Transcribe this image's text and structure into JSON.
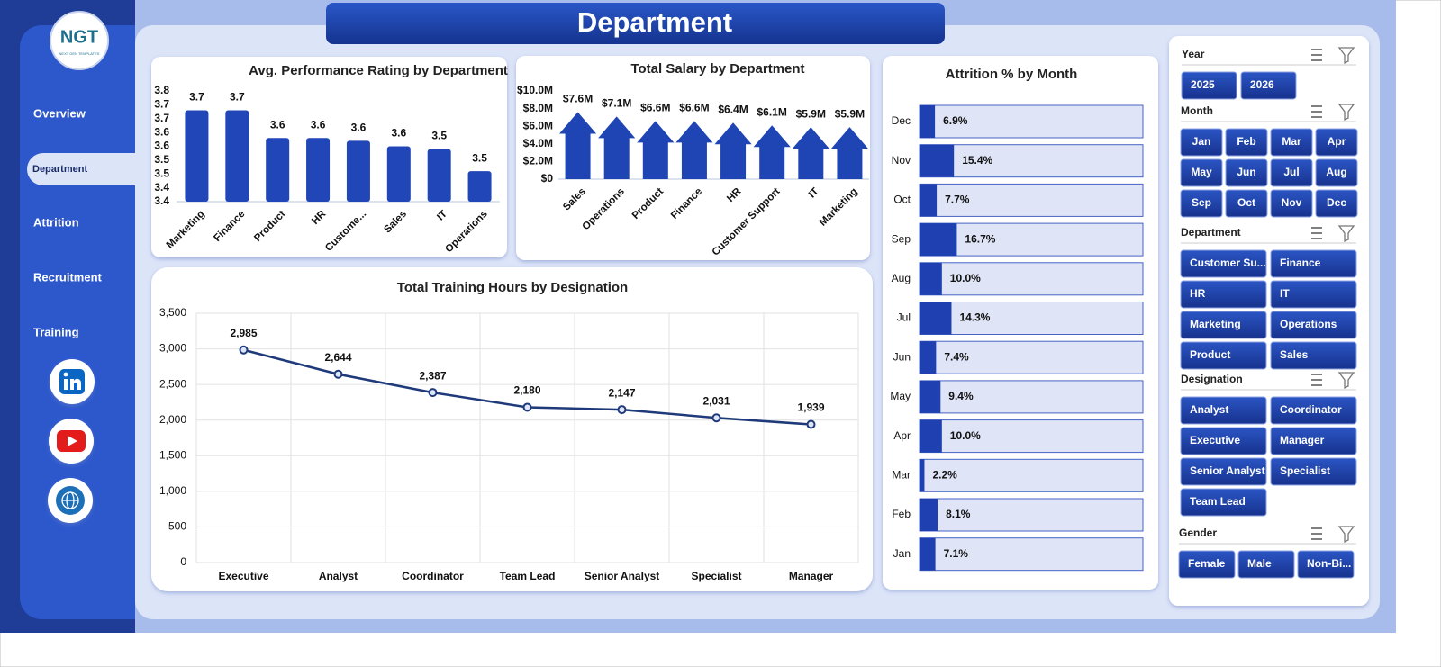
{
  "header": {
    "title": "Department",
    "logo": "NGT",
    "logo_caption": "NEXT GEN TEMPLATES"
  },
  "nav": {
    "items": [
      "Overview",
      "Department",
      "Attrition",
      "Recruitment",
      "Training"
    ],
    "selected": 1
  },
  "chart_data": [
    {
      "type": "bar",
      "title": "Avg. Performance  Rating by Department",
      "categories": [
        "Marketing",
        "Finance",
        "Product",
        "HR",
        "Custome...",
        "Sales",
        "IT",
        "Operations"
      ],
      "values": [
        3.68,
        3.68,
        3.58,
        3.58,
        3.57,
        3.55,
        3.54,
        3.46
      ],
      "value_labels": [
        "3.7",
        "3.7",
        "3.6",
        "3.6",
        "3.6",
        "3.6",
        "3.5",
        "3.5"
      ],
      "color": "#2146b8",
      "ylim": [
        3.35,
        3.75
      ],
      "yticks": [
        {
          "value": 3.35,
          "label": "3.4"
        },
        {
          "value": 3.4,
          "label": "3.4"
        },
        {
          "value": 3.45,
          "label": "3.5"
        },
        {
          "value": 3.5,
          "label": "3.5"
        },
        {
          "value": 3.55,
          "label": "3.6"
        },
        {
          "value": 3.6,
          "label": "3.6"
        },
        {
          "value": 3.65,
          "label": "3.7"
        },
        {
          "value": 3.7,
          "label": "3.7"
        },
        {
          "value": 3.75,
          "label": "3.8"
        }
      ],
      "grid": false
    },
    {
      "type": "bar",
      "shape": "arrow",
      "title": "Total Salary by Department",
      "categories": [
        "Sales",
        "Operations",
        "Product",
        "Finance",
        "HR",
        "Customer Support",
        "IT",
        "Marketing"
      ],
      "values": [
        7600000,
        7100000,
        6600000,
        6600000,
        6400000,
        6100000,
        5900000,
        5900000
      ],
      "value_labels": [
        "$7.6M",
        "$7.1M",
        "$6.6M",
        "$6.6M",
        "$6.4M",
        "$6.1M",
        "$5.9M",
        "$5.9M"
      ],
      "color": "#1f45b5",
      "ylim": [
        0,
        10000000
      ],
      "yticks": [
        {
          "value": 0,
          "label": "$0"
        },
        {
          "value": 2000000,
          "label": "$2.0M"
        },
        {
          "value": 4000000,
          "label": "$4.0M"
        },
        {
          "value": 6000000,
          "label": "$6.0M"
        },
        {
          "value": 8000000,
          "label": "$8.0M"
        },
        {
          "value": 10000000,
          "label": "$10.0M"
        }
      ],
      "grid": false
    },
    {
      "type": "line",
      "title": "Total Training Hours by Designation",
      "categories": [
        "Executive",
        "Analyst",
        "Coordinator",
        "Team Lead",
        "Senior Analyst",
        "Specialist",
        "Manager"
      ],
      "values": [
        2985,
        2644,
        2387,
        2180,
        2147,
        2031,
        1939
      ],
      "value_labels": [
        "2,985",
        "2,644",
        "2,387",
        "2,180",
        "2,147",
        "2,031",
        "1,939"
      ],
      "color": "#1f3a7a",
      "ylim": [
        0,
        3500
      ],
      "yticks": [
        0,
        500,
        {
          "value": 1000,
          "label": "1,000"
        },
        {
          "value": 1500,
          "label": "1,500"
        },
        {
          "value": 2000,
          "label": "2,000"
        },
        {
          "value": 2500,
          "label": "2,500"
        },
        {
          "value": 3000,
          "label": "3,000"
        },
        {
          "value": 3500,
          "label": "3,500"
        }
      ],
      "grid": true
    },
    {
      "type": "barh",
      "title": "Attrition % by Month",
      "categories": [
        "Dec",
        "Nov",
        "Oct",
        "Sep",
        "Aug",
        "Jul",
        "Jun",
        "May",
        "Apr",
        "Mar",
        "Feb",
        "Jan"
      ],
      "values": [
        6.9,
        15.4,
        7.7,
        16.7,
        10.0,
        14.3,
        7.4,
        9.4,
        10.0,
        2.2,
        8.1,
        7.1
      ],
      "value_labels": [
        "6.9%",
        "15.4%",
        "7.7%",
        "16.7%",
        "10.0%",
        "14.3%",
        "7.4%",
        "9.4%",
        "10.0%",
        "2.2%",
        "8.1%",
        "7.1%"
      ],
      "color": "#1f40b0",
      "xlim": [
        0,
        100
      ]
    }
  ],
  "slicers": [
    {
      "title": "Year",
      "items": [
        "2025",
        "2026"
      ]
    },
    {
      "title": "Month",
      "items": [
        "Jan",
        "Feb",
        "Mar",
        "Apr",
        "May",
        "Jun",
        "Jul",
        "Aug",
        "Sep",
        "Oct",
        "Nov",
        "Dec"
      ]
    },
    {
      "title": "Department",
      "items": [
        "Customer Su...",
        "Finance",
        "HR",
        "IT",
        "Marketing",
        "Operations",
        "Product",
        "Sales"
      ]
    },
    {
      "title": "Designation",
      "items": [
        "Analyst",
        "Coordinator",
        "Executive",
        "Manager",
        "Senior Analyst",
        "Specialist",
        "Team Lead"
      ]
    },
    {
      "title": "Gender",
      "items": [
        "Female",
        "Male",
        "Non-Bi..."
      ]
    }
  ]
}
